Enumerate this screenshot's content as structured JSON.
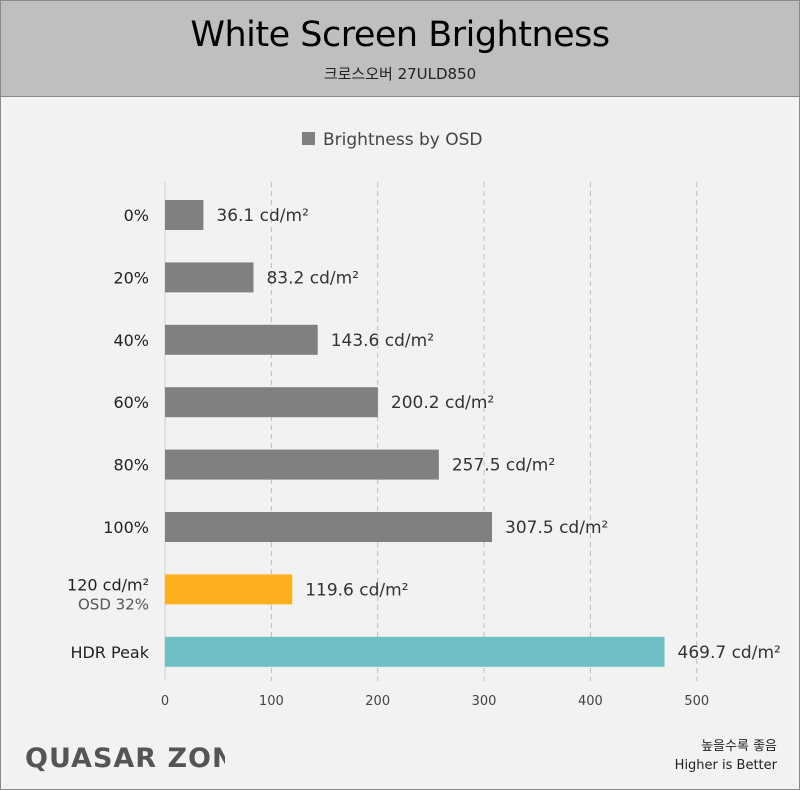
{
  "header": {
    "title": "White Screen Brightness",
    "subtitle": "크로스오버 27ULD850"
  },
  "chart_data": {
    "type": "bar",
    "orientation": "horizontal",
    "legend": "Brightness by OSD",
    "legend_position": "top",
    "categories": [
      "0%",
      "20%",
      "40%",
      "60%",
      "80%",
      "100%",
      "120 cd/m²",
      "HDR Peak"
    ],
    "category_sublabels": [
      "",
      "",
      "",
      "",
      "",
      "",
      "OSD 32%",
      ""
    ],
    "values": [
      36.1,
      83.2,
      143.6,
      200.2,
      257.5,
      307.5,
      119.6,
      469.7
    ],
    "value_labels": [
      "36.1 cd/m²",
      "83.2 cd/m²",
      "143.6 cd/m²",
      "200.2 cd/m²",
      "257.5 cd/m²",
      "307.5 cd/m²",
      "119.6 cd/m²",
      "469.7 cd/m²"
    ],
    "bar_colors": [
      "#808080",
      "#808080",
      "#808080",
      "#808080",
      "#808080",
      "#808080",
      "#fdb01e",
      "#6fbfc5"
    ],
    "xlim": [
      0,
      500
    ],
    "xticks": [
      0,
      100,
      200,
      300,
      400,
      500
    ],
    "grid": true
  },
  "logo": "QUASAR ZONE",
  "footer": {
    "note_ko": "높을수록 좋음",
    "note_en": "Higher is Better"
  }
}
